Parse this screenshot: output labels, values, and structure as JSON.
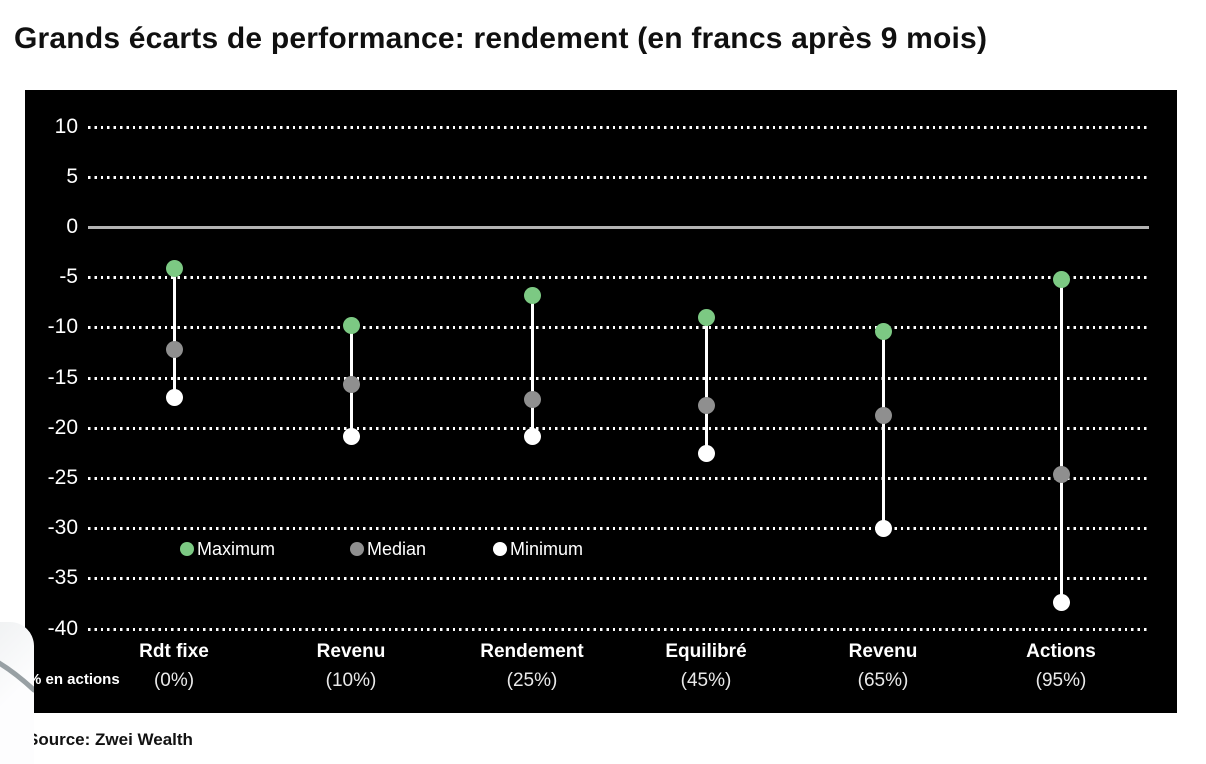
{
  "page": {
    "title": "Grands écarts de performance: rendement (en francs après 9 mois)",
    "source": "Source: Zwei Wealth"
  },
  "chart_data": {
    "type": "scatter",
    "subtype": "vertical-range-dot-plot",
    "title": "Grands écarts de performance: rendement (en francs après 9 mois)",
    "categories": [
      "Rdt fixe",
      "Revenu",
      "Rendement",
      "Equilibré",
      "Revenu",
      "Actions"
    ],
    "category_sublabels": [
      "(0%)",
      "(10%)",
      "(25%)",
      "(45%)",
      "(65%)",
      "(95%)"
    ],
    "axis_note": "% en actions",
    "xlabel": "",
    "ylabel": "",
    "ylim": [
      -40,
      10
    ],
    "yticks": [
      10,
      5,
      0,
      -5,
      -10,
      -15,
      -20,
      -25,
      -30,
      -35,
      -40
    ],
    "grid": "dotted horizontal lines, solid line at 0",
    "legend_position": "inside bottom-left",
    "series": [
      {
        "name": "Maximum",
        "color": "#7cc983",
        "values": [
          -4.1,
          -9.8,
          -6.8,
          -9.0,
          -10.4,
          -5.2
        ]
      },
      {
        "name": "Median",
        "color": "#8f8f8f",
        "values": [
          -12.2,
          -15.7,
          -17.2,
          -17.8,
          -18.8,
          -24.7
        ]
      },
      {
        "name": "Minimum",
        "color": "#ffffff",
        "values": [
          -17.0,
          -20.9,
          -20.9,
          -22.6,
          -30.0,
          -37.4
        ]
      }
    ],
    "colors": {
      "background": "#000000",
      "zero_line": "#b3b3b3",
      "gridline": "#ffffff",
      "text": "#ffffff",
      "title_text": "#101010"
    }
  }
}
